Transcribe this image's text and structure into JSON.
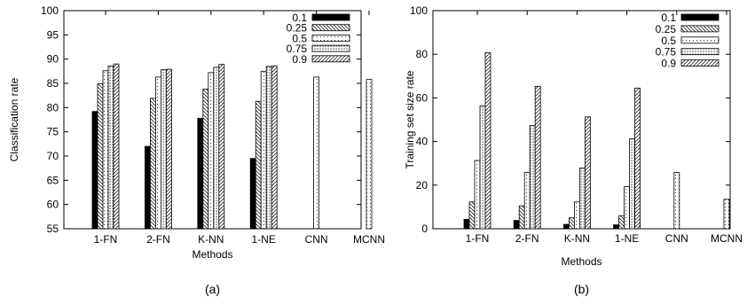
{
  "series_styles": [
    {
      "name": "0.1",
      "pattern": "solid"
    },
    {
      "name": "0.25",
      "pattern": "back-diagonal"
    },
    {
      "name": "0.5",
      "pattern": "dots"
    },
    {
      "name": "0.75",
      "pattern": "dense-dots"
    },
    {
      "name": "0.9",
      "pattern": "forward-diagonal"
    }
  ],
  "chart_data": [
    {
      "type": "bar",
      "caption": "(a)",
      "xlabel": "Methods",
      "ylabel": "Classification rate",
      "ylim": [
        55,
        100
      ],
      "yticks": [
        55,
        60,
        65,
        70,
        75,
        80,
        85,
        90,
        95,
        100
      ],
      "legend_position": "top-right",
      "categories": [
        "1-FN",
        "2-FN",
        "K-NN",
        "1-NE",
        "CNN",
        "MCNN"
      ],
      "series": [
        {
          "name": "0.1",
          "values": [
            79.2,
            72.0,
            77.8,
            69.5,
            null,
            null
          ]
        },
        {
          "name": "0.25",
          "values": [
            84.9,
            81.9,
            83.8,
            81.3,
            null,
            null
          ]
        },
        {
          "name": "0.5",
          "values": [
            87.6,
            86.3,
            87.2,
            87.5,
            86.3,
            85.8
          ]
        },
        {
          "name": "0.75",
          "values": [
            88.6,
            87.8,
            88.3,
            88.5,
            null,
            null
          ]
        },
        {
          "name": "0.9",
          "values": [
            89.0,
            87.9,
            88.9,
            88.6,
            null,
            null
          ]
        }
      ]
    },
    {
      "type": "bar",
      "caption": "(b)",
      "xlabel": "Methods",
      "ylabel": "Training set size rate",
      "ylim": [
        0,
        100
      ],
      "yticks": [
        0,
        20,
        40,
        60,
        80,
        100
      ],
      "legend_position": "top-right",
      "categories": [
        "1-FN",
        "2-FN",
        "K-NN",
        "1-NE",
        "CNN",
        "MCNN"
      ],
      "series": [
        {
          "name": "0.1",
          "values": [
            4.3,
            3.8,
            2.0,
            1.8,
            null,
            null
          ]
        },
        {
          "name": "0.25",
          "values": [
            12.3,
            10.5,
            5.0,
            6.0,
            null,
            null
          ]
        },
        {
          "name": "0.5",
          "values": [
            31.3,
            25.8,
            12.3,
            19.3,
            25.8,
            13.5
          ]
        },
        {
          "name": "0.75",
          "values": [
            56.3,
            47.3,
            27.8,
            41.2,
            null,
            null
          ]
        },
        {
          "name": "0.9",
          "values": [
            80.7,
            65.3,
            51.3,
            64.5,
            null,
            null
          ]
        }
      ]
    }
  ]
}
